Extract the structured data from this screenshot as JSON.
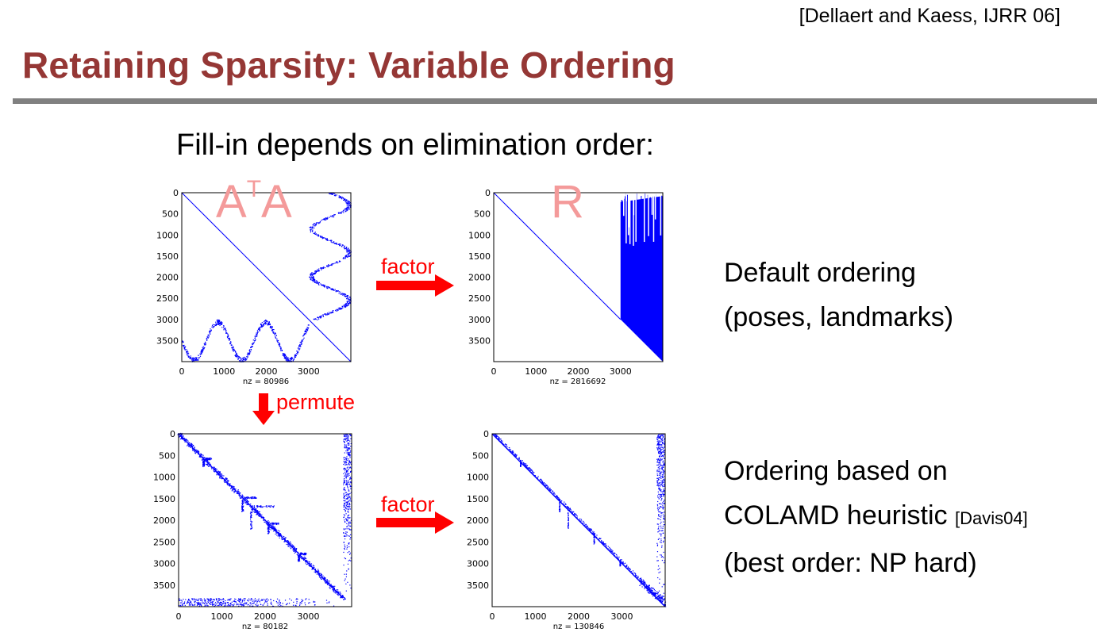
{
  "slide": {
    "citation": "[Dellaert and Kaess, IJRR 06]",
    "title": "Retaining Sparsity: Variable Ordering",
    "subtitle": "Fill-in depends on elimination order:"
  },
  "overlays": {
    "ata_base1": "A",
    "ata_sup": "T",
    "ata_base2": "A",
    "r": "R"
  },
  "arrows": {
    "factor_top": "factor",
    "factor_bottom": "factor",
    "permute": "permute",
    "color": "#ff0000"
  },
  "descriptions": {
    "default_line1": "Default ordering",
    "default_line2": "(poses, landmarks)",
    "colamd_line1": "Ordering based on",
    "colamd_line2a": "COLAMD heuristic",
    "colamd_line2b": "[Davis04]",
    "colamd_line3": "(best order: NP hard)"
  },
  "plots": {
    "y_ticks": [
      "0",
      "500",
      "1000",
      "1500",
      "2000",
      "2500",
      "3000",
      "3500"
    ],
    "x_ticks": [
      "0",
      "1000",
      "2000",
      "3000"
    ],
    "ata_default": {
      "nz": "nz = 80986"
    },
    "r_default": {
      "nz": "nz = 2816692"
    },
    "ata_permuted": {
      "nz": "nz = 80182"
    },
    "r_permuted": {
      "nz": "nz = 130846"
    },
    "marker_color": "#0000ff"
  }
}
